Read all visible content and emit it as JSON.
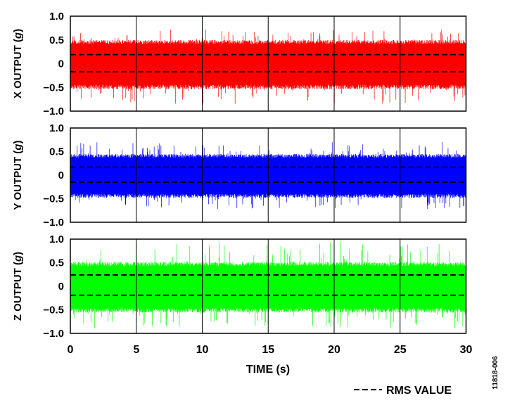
{
  "chart_data": {
    "type": "line",
    "x_axis": {
      "label": "TIME (s)",
      "ticks": [
        0,
        5,
        10,
        15,
        20,
        25,
        30
      ],
      "range": [
        0,
        30
      ]
    },
    "legend": {
      "label": "RMS VALUE",
      "placement": "bottom-right",
      "style": "dashed"
    },
    "figure_id": "11818-006",
    "grid": true,
    "panels": [
      {
        "ylabel_main": "X OUTPUT (",
        "ylabel_unit": "g",
        "ylabel_close": ")",
        "ylim": [
          -1.0,
          1.0
        ],
        "yticks": [
          {
            "value": 1.0,
            "label": "1.0"
          },
          {
            "value": 0.5,
            "label": "0.5"
          },
          {
            "value": 0,
            "label": "0"
          },
          {
            "value": -0.5,
            "label": "−0.5"
          },
          {
            "value": -1.0,
            "label": "−1.0"
          }
        ],
        "color": "#ff0000",
        "typical_peak": 0.5,
        "max_spike": 0.72,
        "min_spike": -0.85,
        "rms_upper": 0.19,
        "rms_lower": -0.17,
        "seed": 11
      },
      {
        "ylabel_main": "Y OUTPUT (",
        "ylabel_unit": "g",
        "ylabel_close": ")",
        "ylim": [
          -1.0,
          1.0
        ],
        "yticks": [
          {
            "value": 1.0,
            "label": "1.0"
          },
          {
            "value": 0.5,
            "label": "0.5"
          },
          {
            "value": 0,
            "label": "0"
          },
          {
            "value": -0.5,
            "label": "−0.5"
          },
          {
            "value": -1.0,
            "label": "−1.0"
          }
        ],
        "color": "#0000ff",
        "typical_peak": 0.45,
        "max_spike": 0.7,
        "min_spike": -0.72,
        "rms_upper": 0.17,
        "rms_lower": -0.15,
        "seed": 23
      },
      {
        "ylabel_main": "Z OUTPUT (",
        "ylabel_unit": "g",
        "ylabel_close": ")",
        "ylim": [
          -1.0,
          1.0
        ],
        "yticks": [
          {
            "value": 1.0,
            "label": "1.0"
          },
          {
            "value": 0.5,
            "label": "0.5"
          },
          {
            "value": 0,
            "label": "0"
          },
          {
            "value": -0.5,
            "label": "−0.5"
          },
          {
            "value": -1.0,
            "label": "−1.0"
          }
        ],
        "color": "#00ff00",
        "typical_peak": 0.52,
        "max_spike": 0.95,
        "min_spike": -0.9,
        "rms_upper": 0.24,
        "rms_lower": -0.19,
        "seed": 37
      }
    ]
  }
}
